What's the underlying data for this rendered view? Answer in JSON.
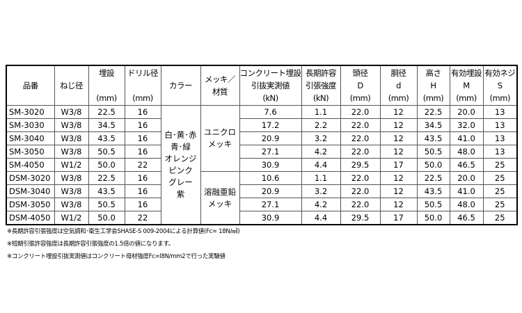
{
  "headers": [
    [
      "品番"
    ],
    [
      "ねじ径"
    ],
    [
      "埋設",
      "",
      "(mm)"
    ],
    [
      "ドリル径",
      "",
      "(mm)"
    ],
    [
      "カラー"
    ],
    [
      "メッキ／",
      "材質"
    ],
    [
      "コンクリート埋設",
      "引抜実測値",
      "(kN)"
    ],
    [
      "長期許容",
      "引張強度",
      "(kN)"
    ],
    [
      "頭径",
      "D",
      "(mm)"
    ],
    [
      "胴径",
      "d",
      "(mm)"
    ],
    [
      "高さ",
      "H",
      "(mm)"
    ],
    [
      "有効埋設",
      "M",
      "(mm)"
    ],
    [
      "有効ネジ",
      "S",
      "(mm)"
    ]
  ],
  "color": [
    "白･黄･赤",
    "青･緑",
    "オレンジ",
    "ピンク",
    "グレー",
    "紫"
  ],
  "plating": [
    [
      "ユニクロ",
      "メッキ"
    ],
    [
      "溶融亜鉛",
      "メッキ"
    ]
  ],
  "rows": [
    [
      "SM-3020",
      "W3/8",
      "22.5",
      "16",
      "7.6",
      "1.1",
      "22.0",
      "12",
      "22.5",
      "20.0",
      "13"
    ],
    [
      "SM-3030",
      "W3/8",
      "34.5",
      "16",
      "17.2",
      "2.2",
      "22.0",
      "12",
      "34.5",
      "32.0",
      "13"
    ],
    [
      "SM-3040",
      "W3/8",
      "43.5",
      "16",
      "20.9",
      "3.2",
      "22.0",
      "12",
      "43.5",
      "41.0",
      "13"
    ],
    [
      "SM-3050",
      "W3/8",
      "50.5",
      "16",
      "27.1",
      "4.2",
      "22.0",
      "12",
      "50.5",
      "48.0",
      "13"
    ],
    [
      "SM-4050",
      "W1/2",
      "50.0",
      "22",
      "30.9",
      "4.4",
      "29.5",
      "17",
      "50.0",
      "46.5",
      "25"
    ],
    [
      "DSM-3020",
      "W3/8",
      "22.5",
      "16",
      "10.6",
      "1.1",
      "22.0",
      "12",
      "22.5",
      "20.0",
      "25"
    ],
    [
      "DSM-3040",
      "W3/8",
      "43.5",
      "16",
      "20.9",
      "3.2",
      "22.0",
      "12",
      "43.5",
      "41.0",
      "25"
    ],
    [
      "DSM-3050",
      "W3/8",
      "50.5",
      "16",
      "27.1",
      "4.2",
      "22.0",
      "12",
      "50.5",
      "48.0",
      "25"
    ],
    [
      "DSM-4050",
      "W1/2",
      "50.0",
      "22",
      "30.9",
      "4.4",
      "29.5",
      "17",
      "50.0",
      "46.5",
      "25"
    ]
  ],
  "notes": [
    "※長期許容引張強度は空気調和･衛生工学会SHASE-S 009-2004による計算値(Fc= 18N/㎟)",
    "※短期引張許容強度は長期許容引張強度の1.5倍の値になります。",
    "※コンクリート埋設引抜実測値はコンクリート母材強度Fc=l8N/mm2で行った実験値"
  ]
}
